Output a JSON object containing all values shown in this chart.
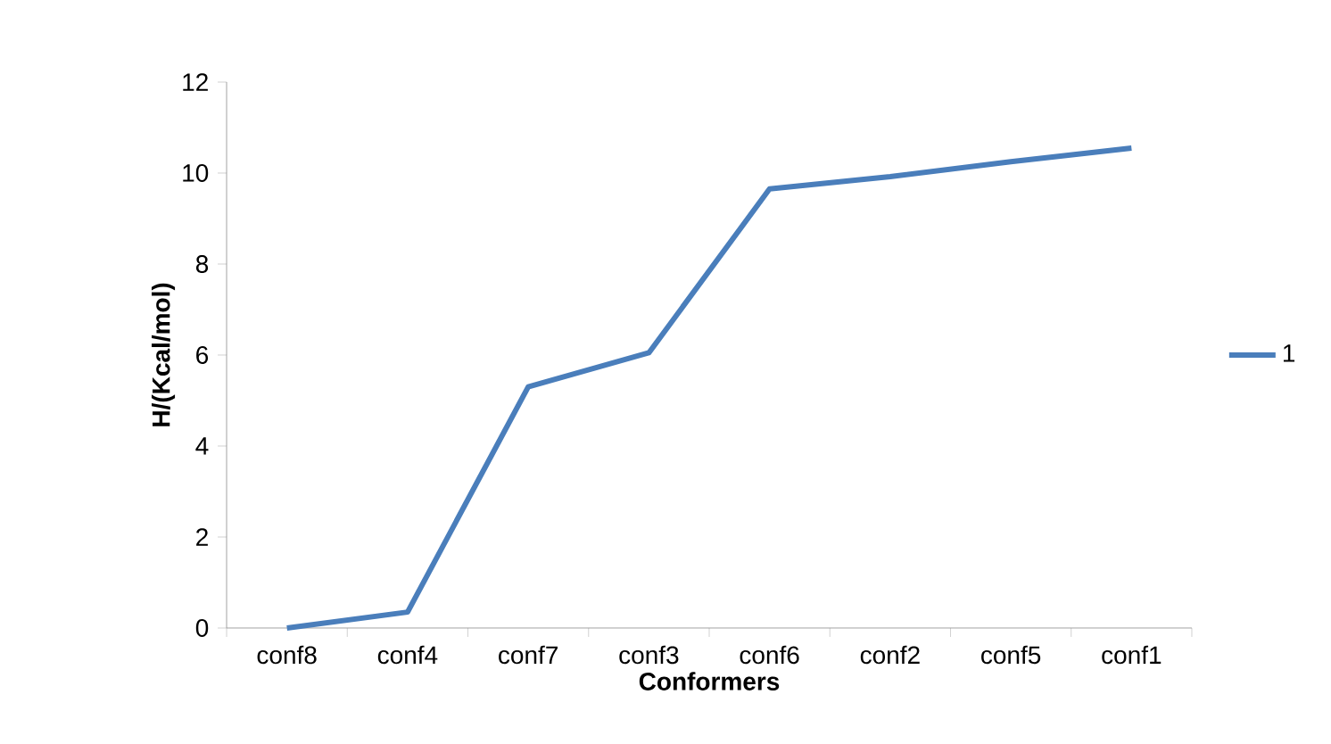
{
  "chart_data": {
    "type": "line",
    "xlabel": "Conformers",
    "ylabel": "H/(Kcal/mol)",
    "categories": [
      "conf8",
      "conf4",
      "conf7",
      "conf3",
      "conf6",
      "conf2",
      "conf5",
      "conf1"
    ],
    "series": [
      {
        "name": "1",
        "color": "#4a7ebb",
        "values": [
          0,
          0.35,
          5.3,
          6.05,
          9.65,
          9.92,
          10.25,
          10.55
        ]
      }
    ],
    "ylim": [
      0,
      12
    ],
    "yticks": [
      0,
      2,
      4,
      6,
      8,
      10,
      12
    ],
    "grid": false,
    "legend": "right",
    "marker": "none",
    "line_style": "solid"
  }
}
